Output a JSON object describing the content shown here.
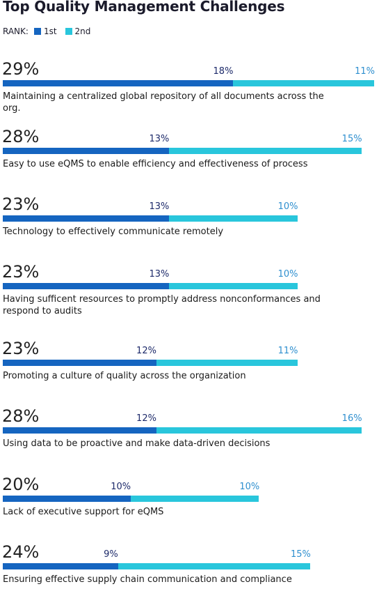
{
  "chart_data": {
    "type": "bar",
    "orientation": "horizontal",
    "stacked": true,
    "title": "Top Quality Management Challenges",
    "legend_title": "RANK:",
    "legend_position": "top-left",
    "grid": false,
    "xlim": [
      0,
      29
    ],
    "series": [
      {
        "name": "1st",
        "color": "#1565c0",
        "values": [
          18,
          13,
          13,
          13,
          12,
          12,
          10,
          9
        ]
      },
      {
        "name": "2nd",
        "color": "#29c6dc",
        "values": [
          11,
          15,
          10,
          10,
          11,
          16,
          10,
          15
        ]
      }
    ],
    "categories": [
      "Maintaining a centralized global repository of all documents across the org.",
      "Easy to use eQMS to enable efficiency and effectiveness of process",
      "Technology to effectively communicate remotely",
      "Having sufficent resources to promptly address nonconformances and respond to audits",
      "Promoting a culture of quality across the organization",
      "Using data to be proactive and make data-driven decisions",
      "Lack of executive support for eQMS",
      "Ensuring effective supply chain communication and compliance"
    ],
    "totals": [
      "29%",
      "28%",
      "23%",
      "23%",
      "23%",
      "28%",
      "20%",
      "24%"
    ],
    "value_labels_first": [
      "18%",
      "13%",
      "13%",
      "13%",
      "12%",
      "12%",
      "10%",
      "9%"
    ],
    "value_labels_second": [
      "11%",
      "15%",
      "10%",
      "10%",
      "11%",
      "16%",
      "10%",
      "15%"
    ]
  }
}
